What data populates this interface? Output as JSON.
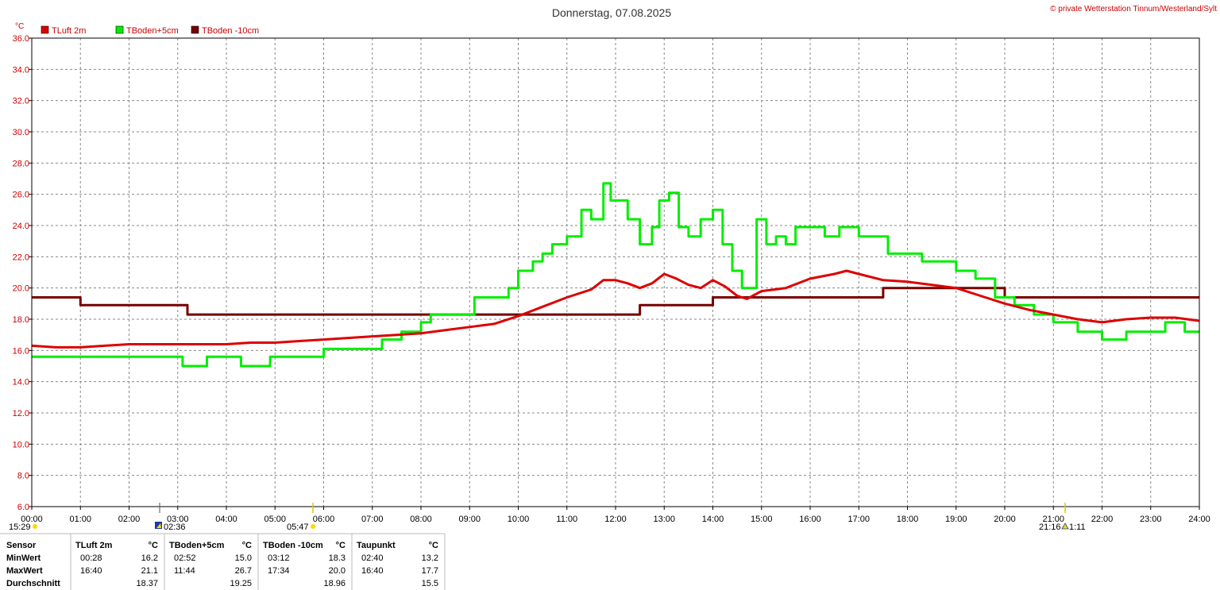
{
  "title": "Donnerstag, 07.08.2025",
  "copyright": "© private Wetterstation Tinnum/Westerland/Sylt",
  "unit": "°C",
  "colors": {
    "tluft": "#dd0000",
    "tboden5": "#00ee00",
    "tboden10": "#770000",
    "axis_text": "#cc0000",
    "grid": "#888888"
  },
  "legend": [
    {
      "label": "TLuft 2m",
      "color": "#dd0000"
    },
    {
      "label": "TBoden+5cm",
      "color": "#00ee00"
    },
    {
      "label": "TBoden -10cm",
      "color": "#770000"
    }
  ],
  "sun_markers": {
    "sunrise_prev": "15:29",
    "dawn": "02:36",
    "sunrise": "05:47",
    "sunset": "21:16",
    "dusk": "1:11"
  },
  "chart_data": {
    "type": "line",
    "title": "Donnerstag, 07.08.2025",
    "xlabel": "",
    "ylabel": "°C",
    "xlim": [
      0,
      24
    ],
    "ylim": [
      6,
      36
    ],
    "grid": true,
    "legend_position": "top-left",
    "x_ticks": [
      "00:00",
      "01:00",
      "02:00",
      "03:00",
      "04:00",
      "05:00",
      "06:00",
      "07:00",
      "08:00",
      "09:00",
      "10:00",
      "11:00",
      "12:00",
      "13:00",
      "14:00",
      "15:00",
      "16:00",
      "17:00",
      "18:00",
      "19:00",
      "20:00",
      "21:00",
      "22:00",
      "23:00",
      "24:00"
    ],
    "y_ticks": [
      "6.0",
      "8.0",
      "10.0",
      "12.0",
      "14.0",
      "16.0",
      "18.0",
      "20.0",
      "22.0",
      "24.0",
      "26.0",
      "28.0",
      "30.0",
      "32.0",
      "34.0",
      "36.0"
    ],
    "series": [
      {
        "name": "TLuft 2m",
        "color": "#dd0000",
        "x": [
          0,
          0.5,
          1,
          1.5,
          2,
          2.5,
          3,
          3.5,
          4,
          4.5,
          5,
          5.5,
          6,
          6.5,
          7,
          7.5,
          8,
          8.5,
          9,
          9.5,
          10,
          10.5,
          11,
          11.5,
          11.75,
          12,
          12.25,
          12.5,
          12.75,
          13,
          13.25,
          13.5,
          13.75,
          14,
          14.25,
          14.5,
          14.7,
          15,
          15.5,
          16,
          16.5,
          16.75,
          17,
          17.5,
          18,
          18.5,
          19,
          19.5,
          20,
          20.5,
          21,
          21.5,
          22,
          22.5,
          23,
          23.5,
          24
        ],
        "y": [
          16.3,
          16.2,
          16.2,
          16.3,
          16.4,
          16.4,
          16.4,
          16.4,
          16.4,
          16.5,
          16.5,
          16.6,
          16.7,
          16.8,
          16.9,
          17.0,
          17.1,
          17.3,
          17.5,
          17.7,
          18.2,
          18.8,
          19.4,
          19.9,
          20.5,
          20.5,
          20.3,
          20.0,
          20.3,
          20.9,
          20.6,
          20.2,
          20.0,
          20.5,
          20.1,
          19.5,
          19.3,
          19.8,
          20.0,
          20.6,
          20.9,
          21.1,
          20.9,
          20.5,
          20.4,
          20.2,
          20.0,
          19.5,
          19.0,
          18.6,
          18.3,
          18.0,
          17.8,
          18.0,
          18.1,
          18.1,
          17.9
        ]
      },
      {
        "name": "TBoden+5cm",
        "color": "#00ee00",
        "x": [
          0,
          1,
          2,
          2.5,
          2.9,
          3.1,
          3.6,
          3.8,
          4.3,
          4.9,
          5.5,
          6.0,
          6.5,
          7.2,
          7.6,
          8.0,
          8.2,
          8.5,
          9.0,
          9.1,
          9.5,
          9.8,
          10.0,
          10.3,
          10.5,
          10.7,
          11.0,
          11.3,
          11.5,
          11.75,
          11.9,
          12.1,
          12.25,
          12.5,
          12.75,
          12.9,
          13.1,
          13.3,
          13.5,
          13.75,
          14.0,
          14.2,
          14.4,
          14.6,
          14.75,
          14.9,
          15.1,
          15.3,
          15.5,
          15.7,
          16.0,
          16.3,
          16.6,
          17.0,
          17.3,
          17.6,
          18.0,
          18.3,
          18.7,
          19.0,
          19.4,
          19.8,
          20.2,
          20.6,
          21.0,
          21.5,
          22.0,
          22.5,
          23.0,
          23.3,
          23.7,
          24.0
        ],
        "y": [
          15.6,
          15.6,
          15.6,
          15.6,
          15.6,
          15.0,
          15.6,
          15.6,
          15.0,
          15.6,
          15.6,
          16.1,
          16.1,
          16.7,
          17.2,
          17.8,
          18.3,
          18.3,
          18.3,
          19.4,
          19.4,
          20.0,
          21.1,
          21.7,
          22.2,
          22.8,
          23.3,
          25.0,
          24.4,
          26.7,
          25.6,
          25.6,
          24.4,
          22.8,
          23.9,
          25.6,
          26.1,
          23.9,
          23.3,
          24.4,
          25.0,
          22.8,
          21.1,
          20.0,
          20.0,
          24.4,
          22.8,
          23.3,
          22.8,
          23.9,
          23.9,
          23.3,
          23.9,
          23.3,
          23.3,
          22.2,
          22.2,
          21.7,
          21.7,
          21.1,
          20.6,
          19.4,
          18.9,
          18.3,
          17.8,
          17.2,
          16.7,
          17.2,
          17.2,
          17.8,
          17.2,
          17.2
        ]
      },
      {
        "name": "TBoden -10cm",
        "color": "#770000",
        "x": [
          0,
          1.0,
          1.0,
          3.2,
          3.2,
          12.5,
          12.5,
          14.0,
          14.0,
          17.5,
          17.5,
          17.8,
          17.8,
          20.0,
          20.0,
          24.0
        ],
        "y": [
          19.4,
          19.4,
          18.9,
          18.9,
          18.3,
          18.3,
          18.9,
          18.9,
          19.4,
          19.4,
          20.0,
          20.0,
          20.0,
          20.0,
          19.4,
          19.4
        ]
      }
    ]
  },
  "stats_table": {
    "headers": [
      "Sensor",
      "TLuft 2m",
      "°C",
      "TBoden+5cm",
      "°C",
      "TBoden -10cm",
      "°C",
      "Taupunkt",
      "°C"
    ],
    "rows": [
      [
        "MinWert",
        "00:28",
        "16.2",
        "02:52",
        "15.0",
        "03:12",
        "18.3",
        "02:40",
        "13.2"
      ],
      [
        "MaxWert",
        "16:40",
        "21.1",
        "11:44",
        "26.7",
        "17:34",
        "20.0",
        "16:40",
        "17.7"
      ],
      [
        "Durchschnitt",
        "",
        "18.37",
        "",
        "19.25",
        "",
        "18.96",
        "",
        "15.5"
      ]
    ]
  }
}
